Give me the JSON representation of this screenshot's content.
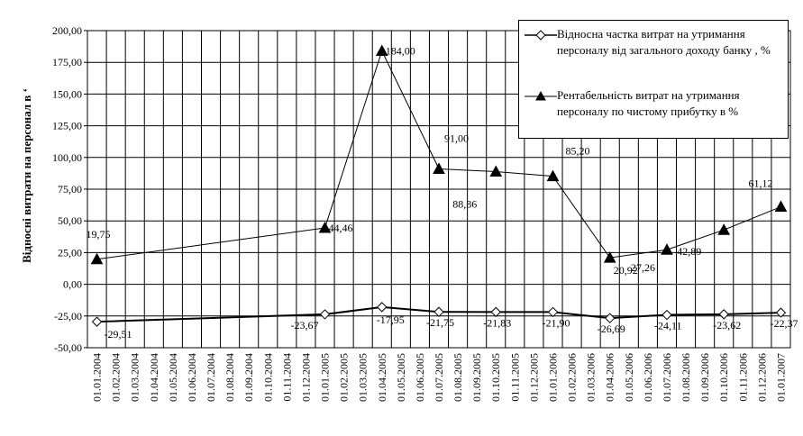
{
  "chart_data": {
    "type": "line",
    "ylabel": "Відносні витрати на персонал в ‘",
    "ylim": [
      -50,
      200
    ],
    "yticks": [
      "-50,00",
      "-25,00",
      "0,00",
      "25,00",
      "50,00",
      "75,00",
      "100,00",
      "125,00",
      "150,00",
      "175,00",
      "200,00"
    ],
    "grid": true,
    "legend_position": "top-right",
    "categories": [
      "01.01.2004",
      "01.02.2004",
      "01.03.2004",
      "01.04.2004",
      "01.05.2004",
      "01.06.2004",
      "01.07.2004",
      "01.08.2004",
      "01.09.2004",
      "01.10.2004",
      "01.11.2004",
      "01.12.2004",
      "01.01.2005",
      "01.02.2005",
      "01.03.2005",
      "01.04.2005",
      "01.05.2005",
      "01.06.2005",
      "01.07.2005",
      "01.08.2005",
      "01.09.2005",
      "01.10.2005",
      "01.11.2005",
      "01.12.2005",
      "01.01.2006",
      "01.02.2006",
      "01.03.2006",
      "01.04.2006",
      "01.05.2006",
      "01.06.2006",
      "01.07.2006",
      "01.08.2006",
      "01.09.2006",
      "01.10.2006",
      "01.11.2006",
      "01.12.2006",
      "01.01.2007"
    ],
    "series": [
      {
        "name": "Відносна частка витрат на утримання персоналу від загального доходу банку , %",
        "marker": "diamond",
        "points": [
          {
            "x": "01.01.2004",
            "y": -29.51,
            "label": "-29,51"
          },
          {
            "x": "01.01.2005",
            "y": -23.67,
            "label": "-23,67"
          },
          {
            "x": "01.04.2005",
            "y": -17.95,
            "label": "-17,95"
          },
          {
            "x": "01.07.2005",
            "y": -21.75,
            "label": "-21,75"
          },
          {
            "x": "01.10.2005",
            "y": -21.83,
            "label": "-21,83"
          },
          {
            "x": "01.01.2006",
            "y": -21.9,
            "label": "-21,90"
          },
          {
            "x": "01.04.2006",
            "y": -26.69,
            "label": "-26,69"
          },
          {
            "x": "01.07.2006",
            "y": -24.11,
            "label": "-24,11"
          },
          {
            "x": "01.10.2006",
            "y": -23.62,
            "label": "-23,62"
          },
          {
            "x": "01.01.2007",
            "y": -22.37,
            "label": "-22,37"
          }
        ]
      },
      {
        "name": "Рентабельність витрат на утримання персоналу по чистому прибутку  в %",
        "marker": "triangle",
        "points": [
          {
            "x": "01.01.2004",
            "y": 19.75,
            "label": "19,75"
          },
          {
            "x": "01.01.2005",
            "y": 44.46,
            "label": "44,46"
          },
          {
            "x": "01.04.2005",
            "y": 184.0,
            "label": "184,00"
          },
          {
            "x": "01.07.2005",
            "y": 91.0,
            "label": "91,00"
          },
          {
            "x": "01.10.2005",
            "y": 88.86,
            "label": "88,86"
          },
          {
            "x": "01.01.2006",
            "y": 85.2,
            "label": "85,20"
          },
          {
            "x": "01.04.2006",
            "y": 20.92,
            "label": "20,92"
          },
          {
            "x": "01.07.2006",
            "y": 27.26,
            "label": "27,26"
          },
          {
            "x": "01.10.2006",
            "y": 42.89,
            "label": "42,89"
          },
          {
            "x": "01.01.2007",
            "y": 61.12,
            "label": "61,12"
          }
        ]
      }
    ]
  },
  "legend": {
    "item1": "Відносна частка витрат на утримання персоналу від загального доходу банку , %",
    "item2": "Рентабельність витрат на утримання персоналу по чистому прибутку  в %"
  }
}
